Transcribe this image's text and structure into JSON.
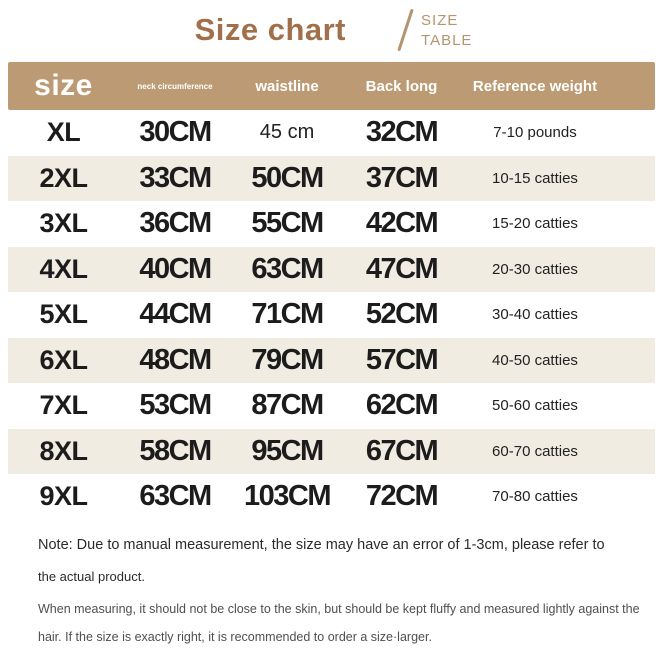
{
  "page": {
    "title": "Size chart",
    "subtitle_line1": "SIZE",
    "subtitle_line2": "TABLE"
  },
  "colors": {
    "title_brown": "#a26f4b",
    "subtitle_tan": "#b3956f",
    "header_bg": "#bc9b74",
    "header_text": "#ffffff",
    "stripe_beige": "#f1ece2",
    "data_text": "#1c1c1c",
    "note_dark": "#2b2b2b",
    "note_gray": "#4f4f4f"
  },
  "table": {
    "columns": [
      {
        "key": "size",
        "label": "size"
      },
      {
        "key": "neck",
        "label": "neck circumference"
      },
      {
        "key": "waist",
        "label": "waistline"
      },
      {
        "key": "back",
        "label": "Back long"
      },
      {
        "key": "weight",
        "label": "Reference weight"
      }
    ],
    "rows": [
      {
        "size": "XL",
        "neck": "30CM",
        "waist": "45 cm",
        "back": "32CM",
        "weight": "7-10 pounds",
        "waist_style": "small"
      },
      {
        "size": "2XL",
        "neck": "33CM",
        "waist": "50CM",
        "back": "37CM",
        "weight": "10-15 catties",
        "waist_style": "bold"
      },
      {
        "size": "3XL",
        "neck": "36CM",
        "waist": "55CM",
        "back": "42CM",
        "weight": "15-20 catties",
        "waist_style": "bold"
      },
      {
        "size": "4XL",
        "neck": "40CM",
        "waist": "63CM",
        "back": "47CM",
        "weight": "20-30 catties",
        "waist_style": "bold"
      },
      {
        "size": "5XL",
        "neck": "44CM",
        "waist": "71CM",
        "back": "52CM",
        "weight": "30-40 catties",
        "waist_style": "bold"
      },
      {
        "size": "6XL",
        "neck": "48CM",
        "waist": "79CM",
        "back": "57CM",
        "weight": "40-50 catties",
        "waist_style": "bold"
      },
      {
        "size": "7XL",
        "neck": "53CM",
        "waist": "87CM",
        "back": "62CM",
        "weight": "50-60 catties",
        "waist_style": "bold"
      },
      {
        "size": "8XL",
        "neck": "58CM",
        "waist": "95CM",
        "back": "67CM",
        "weight": "60-70 catties",
        "waist_style": "bold"
      },
      {
        "size": "9XL",
        "neck": "63CM",
        "waist": "103CM",
        "back": "72CM",
        "weight": "70-80 catties",
        "waist_style": "bold"
      }
    ]
  },
  "notes": {
    "line1": "Note: Due to manual measurement, the size may have an error of 1-3cm, please refer to",
    "line2": "the actual product.",
    "line3": "When measuring, it should not be close to the skin, but should be kept fluffy and measured lightly against the",
    "line4": "hair. If the size is exactly right, it is recommended to order a size·larger."
  }
}
